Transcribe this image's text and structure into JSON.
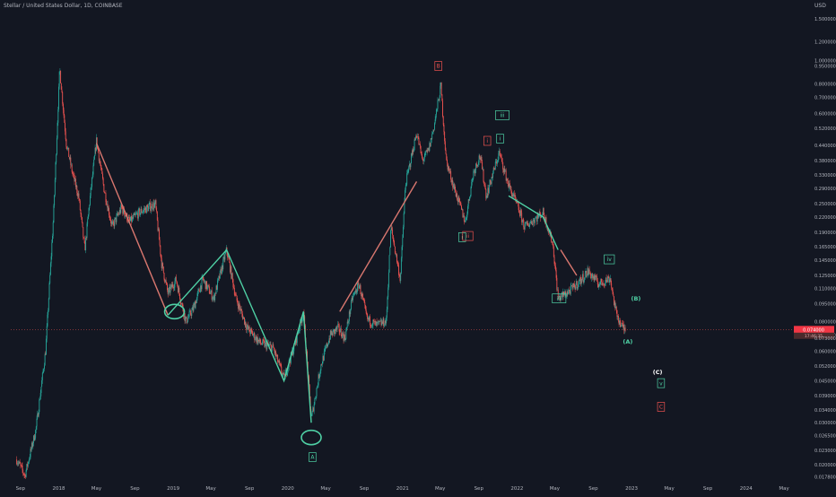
{
  "header": {
    "symbol_title": "Stellar / United States Dollar, 1D, COINBASE"
  },
  "chart_data": {
    "type": "candlestick",
    "title": "Stellar / United States Dollar, 1D, COINBASE",
    "y_axis": {
      "unit_label": "USD",
      "scale": "log",
      "range": [
        0.0165,
        1.65
      ],
      "tick_labels": [
        "1.500000",
        "1.200000",
        "1.000000",
        "0.950000",
        "0.800000",
        "0.700000",
        "0.600000",
        "0.520000",
        "0.440000",
        "0.380000",
        "0.330000",
        "0.290000",
        "0.250000",
        "0.220000",
        "0.190000",
        "0.165000",
        "0.145000",
        "0.125000",
        "0.110000",
        "0.095000",
        "0.080000",
        "0.070000",
        "0.060000",
        "0.052000",
        "0.045000",
        "0.039000",
        "0.034000",
        "0.030000",
        "0.026500",
        "0.023000",
        "0.020000",
        "0.017800"
      ]
    },
    "x_axis": {
      "tick_labels": [
        "Sep",
        "2018",
        "May",
        "Sep",
        "2019",
        "May",
        "Sep",
        "2020",
        "May",
        "Sep",
        "2021",
        "May",
        "Sep",
        "2022",
        "May",
        "Sep",
        "2023",
        "May",
        "Sep",
        "2024",
        "May"
      ]
    },
    "price_labels": {
      "last_price": "0.074000",
      "secondary": "0.073000",
      "countdown": "17:46:35"
    },
    "price_path": [
      [
        "2017-08-20",
        0.021
      ],
      [
        "2017-09-15",
        0.018
      ],
      [
        "2017-10-20",
        0.028
      ],
      [
        "2017-11-20",
        0.06
      ],
      [
        "2017-12-15",
        0.22
      ],
      [
        "2018-01-04",
        0.93
      ],
      [
        "2018-01-25",
        0.45
      ],
      [
        "2018-02-15",
        0.33
      ],
      [
        "2018-03-05",
        0.27
      ],
      [
        "2018-03-25",
        0.16
      ],
      [
        "2018-04-10",
        0.26
      ],
      [
        "2018-05-01",
        0.46
      ],
      [
        "2018-05-25",
        0.29
      ],
      [
        "2018-06-20",
        0.2
      ],
      [
        "2018-07-20",
        0.24
      ],
      [
        "2018-08-15",
        0.21
      ],
      [
        "2018-09-15",
        0.23
      ],
      [
        "2018-10-10",
        0.24
      ],
      [
        "2018-11-05",
        0.25
      ],
      [
        "2018-11-25",
        0.14
      ],
      [
        "2018-12-15",
        0.105
      ],
      [
        "2019-01-10",
        0.12
      ],
      [
        "2019-02-10",
        0.08
      ],
      [
        "2019-03-05",
        0.09
      ],
      [
        "2019-04-05",
        0.12
      ],
      [
        "2019-05-10",
        0.1
      ],
      [
        "2019-06-20",
        0.16
      ],
      [
        "2019-07-20",
        0.1
      ],
      [
        "2019-08-25",
        0.075
      ],
      [
        "2019-10-05",
        0.065
      ],
      [
        "2019-11-15",
        0.062
      ],
      [
        "2019-12-20",
        0.046
      ],
      [
        "2020-01-25",
        0.065
      ],
      [
        "2020-02-20",
        0.088
      ],
      [
        "2020-03-16",
        0.031
      ],
      [
        "2020-04-15",
        0.052
      ],
      [
        "2020-05-15",
        0.07
      ],
      [
        "2020-06-10",
        0.075
      ],
      [
        "2020-07-01",
        0.068
      ],
      [
        "2020-07-25",
        0.1
      ],
      [
        "2020-08-15",
        0.115
      ],
      [
        "2020-09-10",
        0.082
      ],
      [
        "2020-10-10",
        0.077
      ],
      [
        "2020-11-10",
        0.08
      ],
      [
        "2020-11-25",
        0.2
      ],
      [
        "2020-12-25",
        0.12
      ],
      [
        "2021-01-10",
        0.3
      ],
      [
        "2021-02-15",
        0.5
      ],
      [
        "2021-03-05",
        0.38
      ],
      [
        "2021-03-25",
        0.42
      ],
      [
        "2021-04-10",
        0.52
      ],
      [
        "2021-05-03",
        0.78
      ],
      [
        "2021-05-20",
        0.38
      ],
      [
        "2021-06-15",
        0.29
      ],
      [
        "2021-07-20",
        0.21
      ],
      [
        "2021-08-15",
        0.34
      ],
      [
        "2021-09-05",
        0.4
      ],
      [
        "2021-09-25",
        0.27
      ],
      [
        "2021-11-05",
        0.41
      ],
      [
        "2021-12-05",
        0.3
      ],
      [
        "2022-01-05",
        0.24
      ],
      [
        "2022-01-25",
        0.2
      ],
      [
        "2022-03-25",
        0.23
      ],
      [
        "2022-04-25",
        0.17
      ],
      [
        "2022-05-12",
        0.1
      ],
      [
        "2022-06-20",
        0.108
      ],
      [
        "2022-07-25",
        0.12
      ],
      [
        "2022-08-15",
        0.13
      ],
      [
        "2022-09-20",
        0.115
      ],
      [
        "2022-10-25",
        0.122
      ],
      [
        "2022-11-10",
        0.09
      ],
      [
        "2022-11-28",
        0.077
      ],
      [
        "2022-12-12",
        0.074
      ]
    ],
    "wave_lines": [
      {
        "color": "#d9776f",
        "points": [
          [
            "2018-05-01",
            0.45
          ],
          [
            "2018-12-15",
            0.085
          ]
        ]
      },
      {
        "color": "#4fd1a5",
        "points": [
          [
            "2018-12-15",
            0.085
          ],
          [
            "2019-06-20",
            0.16
          ],
          [
            "2019-12-20",
            0.045
          ],
          [
            "2020-02-20",
            0.088
          ],
          [
            "2020-03-16",
            0.03
          ]
        ]
      },
      {
        "color": "#d9776f",
        "points": [
          [
            "2020-06-15",
            0.088
          ],
          [
            "2021-02-15",
            0.31
          ]
        ]
      },
      {
        "color": "#4fd1a5",
        "points": [
          [
            "2021-12-05",
            0.27
          ],
          [
            "2022-03-25",
            0.22
          ],
          [
            "2022-05-12",
            0.16
          ]
        ]
      },
      {
        "color": "#d9776f",
        "points": [
          [
            "2022-05-20",
            0.16
          ],
          [
            "2022-07-10",
            0.125
          ]
        ]
      }
    ],
    "circles": [
      {
        "date": "2019-01-05",
        "price": 0.088,
        "label": "bottom-2018"
      },
      {
        "date": "2020-03-16",
        "price": 0.026,
        "label": "bottom-2020"
      }
    ],
    "annotations": [
      {
        "text": "B",
        "date": "2021-04-25",
        "price": 0.95,
        "color": "#ef5350",
        "boxed": true
      },
      {
        "text": "A",
        "date": "2020-03-20",
        "price": 0.0215,
        "color": "#4fd1a5",
        "boxed": true
      },
      {
        "text": "iii",
        "date": "2021-11-15",
        "price": 0.59,
        "color": "#4fd1a5",
        "boxed": true
      },
      {
        "text": "i",
        "date": "2021-09-28",
        "price": 0.46,
        "color": "#ef5350",
        "boxed": true
      },
      {
        "text": "i",
        "date": "2021-11-08",
        "price": 0.47,
        "color": "#4fd1a5",
        "boxed": true
      },
      {
        "text": "i",
        "date": "2021-07-10",
        "price": 0.181,
        "color": "#4fd1a5",
        "boxed": true
      },
      {
        "text": "ii",
        "date": "2021-07-28",
        "price": 0.183,
        "color": "#ef5350",
        "boxed": true
      },
      {
        "text": "iii",
        "date": "2022-05-15",
        "price": 0.1,
        "color": "#4fd1a5",
        "boxed": true
      },
      {
        "text": "iv",
        "date": "2022-10-22",
        "price": 0.146,
        "color": "#4fd1a5",
        "boxed": true
      },
      {
        "text": "(B)",
        "date": "2023-01-15",
        "price": 0.1,
        "color": "#4fd1a5",
        "boxed": false
      },
      {
        "text": "(A)",
        "date": "2022-12-20",
        "price": 0.066,
        "color": "#4fd1a5",
        "boxed": false
      },
      {
        "text": "(C)",
        "date": "2023-03-25",
        "price": 0.049,
        "color": "#ffffff",
        "boxed": false
      },
      {
        "text": "v",
        "date": "2023-04-05",
        "price": 0.044,
        "color": "#4fd1a5",
        "boxed": true
      },
      {
        "text": "C",
        "date": "2023-04-05",
        "price": 0.035,
        "color": "#ef5350",
        "boxed": true
      }
    ],
    "colors": {
      "up": "#26a69a",
      "down": "#ef5350",
      "background": "#131722",
      "label_bg": "#f23645"
    }
  }
}
